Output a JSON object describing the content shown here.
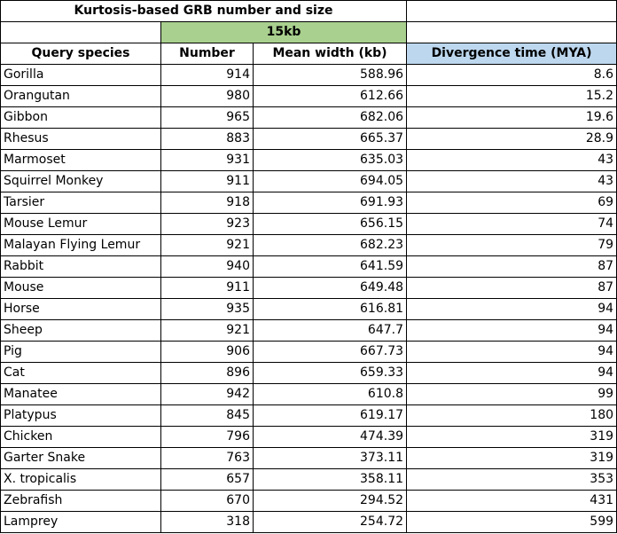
{
  "title": "Kurtosis-based GRB number and size",
  "band_label": "15kb",
  "headers": {
    "species": "Query species",
    "number": "Number",
    "mean_width": "Mean width (kb)",
    "divergence": "Divergence time (MYA)"
  },
  "colors": {
    "band_bg": "#a9d08e",
    "divergence_header_bg": "#bdd7ee"
  },
  "rows": [
    {
      "species": "Gorilla",
      "number": "914",
      "mean_width": "588.96",
      "divergence": "8.6"
    },
    {
      "species": "Orangutan",
      "number": "980",
      "mean_width": "612.66",
      "divergence": "15.2"
    },
    {
      "species": "Gibbon",
      "number": "965",
      "mean_width": "682.06",
      "divergence": "19.6"
    },
    {
      "species": "Rhesus",
      "number": "883",
      "mean_width": "665.37",
      "divergence": "28.9"
    },
    {
      "species": "Marmoset",
      "number": "931",
      "mean_width": "635.03",
      "divergence": "43"
    },
    {
      "species": "Squirrel Monkey",
      "number": "911",
      "mean_width": "694.05",
      "divergence": "43"
    },
    {
      "species": "Tarsier",
      "number": "918",
      "mean_width": "691.93",
      "divergence": "69"
    },
    {
      "species": "Mouse Lemur",
      "number": "923",
      "mean_width": "656.15",
      "divergence": "74"
    },
    {
      "species": "Malayan Flying Lemur",
      "number": "921",
      "mean_width": "682.23",
      "divergence": "79"
    },
    {
      "species": "Rabbit",
      "number": "940",
      "mean_width": "641.59",
      "divergence": "87"
    },
    {
      "species": "Mouse",
      "number": "911",
      "mean_width": "649.48",
      "divergence": "87"
    },
    {
      "species": "Horse",
      "number": "935",
      "mean_width": "616.81",
      "divergence": "94"
    },
    {
      "species": "Sheep",
      "number": "921",
      "mean_width": "647.7",
      "divergence": "94"
    },
    {
      "species": "Pig",
      "number": "906",
      "mean_width": "667.73",
      "divergence": "94"
    },
    {
      "species": "Cat",
      "number": "896",
      "mean_width": "659.33",
      "divergence": "94"
    },
    {
      "species": "Manatee",
      "number": "942",
      "mean_width": "610.8",
      "divergence": "99"
    },
    {
      "species": "Platypus",
      "number": "845",
      "mean_width": "619.17",
      "divergence": "180"
    },
    {
      "species": "Chicken",
      "number": "796",
      "mean_width": "474.39",
      "divergence": "319"
    },
    {
      "species": "Garter Snake",
      "number": "763",
      "mean_width": "373.11",
      "divergence": "319"
    },
    {
      "species": "X. tropicalis",
      "number": "657",
      "mean_width": "358.11",
      "divergence": "353"
    },
    {
      "species": "Zebrafish",
      "number": "670",
      "mean_width": "294.52",
      "divergence": "431"
    },
    {
      "species": "Lamprey",
      "number": "318",
      "mean_width": "254.72",
      "divergence": "599"
    }
  ]
}
